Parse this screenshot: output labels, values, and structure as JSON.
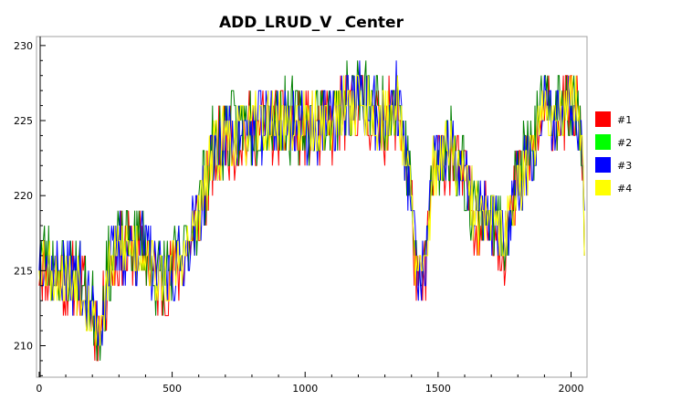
{
  "chart_data": {
    "type": "line",
    "title": "ADD_LRUD_V _Center",
    "xlabel": "",
    "ylabel": "",
    "xlim": [
      -10,
      2060
    ],
    "ylim": [
      207.9,
      230.6
    ],
    "xticks": [
      0,
      500,
      1000,
      1500,
      2000
    ],
    "yticks": [
      210,
      215,
      220,
      225,
      230
    ],
    "grid": false,
    "legend_position": "right",
    "series": [
      {
        "name": "#1",
        "color": "#ff0000",
        "noise": 1.4,
        "offset": -0.5,
        "seed": 11
      },
      {
        "name": "#2",
        "color": "#008000",
        "legend_color": "#00ff00",
        "noise": 1.5,
        "offset": 0.6,
        "seed": 23
      },
      {
        "name": "#3",
        "color": "#0000ff",
        "noise": 1.2,
        "offset": 0.1,
        "seed": 37
      },
      {
        "name": "#4",
        "color": "#ffff00",
        "noise": 1.0,
        "offset": 0.0,
        "seed": 53
      }
    ],
    "baseline": {
      "x": [
        0,
        50,
        100,
        150,
        200,
        230,
        260,
        300,
        350,
        400,
        450,
        500,
        550,
        600,
        650,
        700,
        800,
        900,
        1000,
        1100,
        1150,
        1200,
        1250,
        1300,
        1350,
        1380,
        1400,
        1420,
        1450,
        1480,
        1500,
        1550,
        1600,
        1650,
        1700,
        1750,
        1800,
        1850,
        1900,
        1950,
        1980,
        2000,
        2020,
        2040,
        2050
      ],
      "y": [
        216,
        215,
        214.5,
        214.5,
        212,
        211,
        215,
        216.5,
        216.5,
        216.5,
        214,
        215,
        216,
        219,
        222.5,
        224,
        224.5,
        225,
        224.5,
        225,
        226,
        226.5,
        225.5,
        225,
        226.5,
        222,
        220,
        214,
        215,
        221.5,
        222.5,
        223,
        221,
        218.5,
        218.5,
        217,
        221,
        223,
        225.5,
        225.5,
        226,
        226.5,
        226,
        224,
        218
      ]
    },
    "points_per_series": 520
  }
}
